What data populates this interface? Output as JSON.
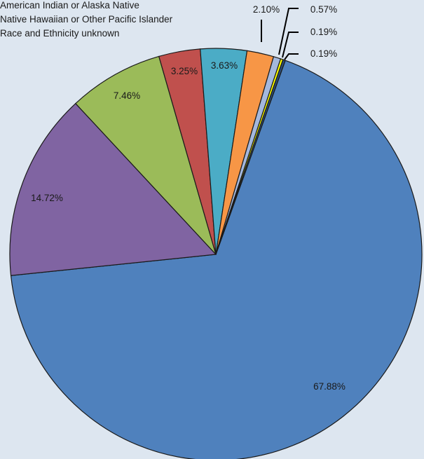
{
  "chart_data": {
    "type": "pie",
    "title": "",
    "legend": {
      "placement": "top-left",
      "entries": [
        "American Indian or Alaska Native",
        "Native Hawaiian or Other Pacific Islander",
        "Race and Ethnicity unknown"
      ]
    },
    "slices": [
      {
        "value": 67.88,
        "label": "67.88%",
        "color": "#4f81bd"
      },
      {
        "value": 14.72,
        "label": "14.72%",
        "color": "#8064a2"
      },
      {
        "value": 7.46,
        "label": "7.46%",
        "color": "#9bbb59"
      },
      {
        "value": 3.25,
        "label": "3.25%",
        "color": "#c0504d"
      },
      {
        "value": 3.63,
        "label": "3.63%",
        "color": "#4bacc6"
      },
      {
        "value": 2.1,
        "label": "2.10%",
        "color": "#f79646"
      },
      {
        "value": 0.57,
        "label": "0.57%",
        "color": "#a4b8dd"
      },
      {
        "value": 0.19,
        "label": "0.19%",
        "color": "#ffff00"
      },
      {
        "value": 0.19,
        "label": "0.19%",
        "color": "#2c4d75"
      }
    ]
  }
}
